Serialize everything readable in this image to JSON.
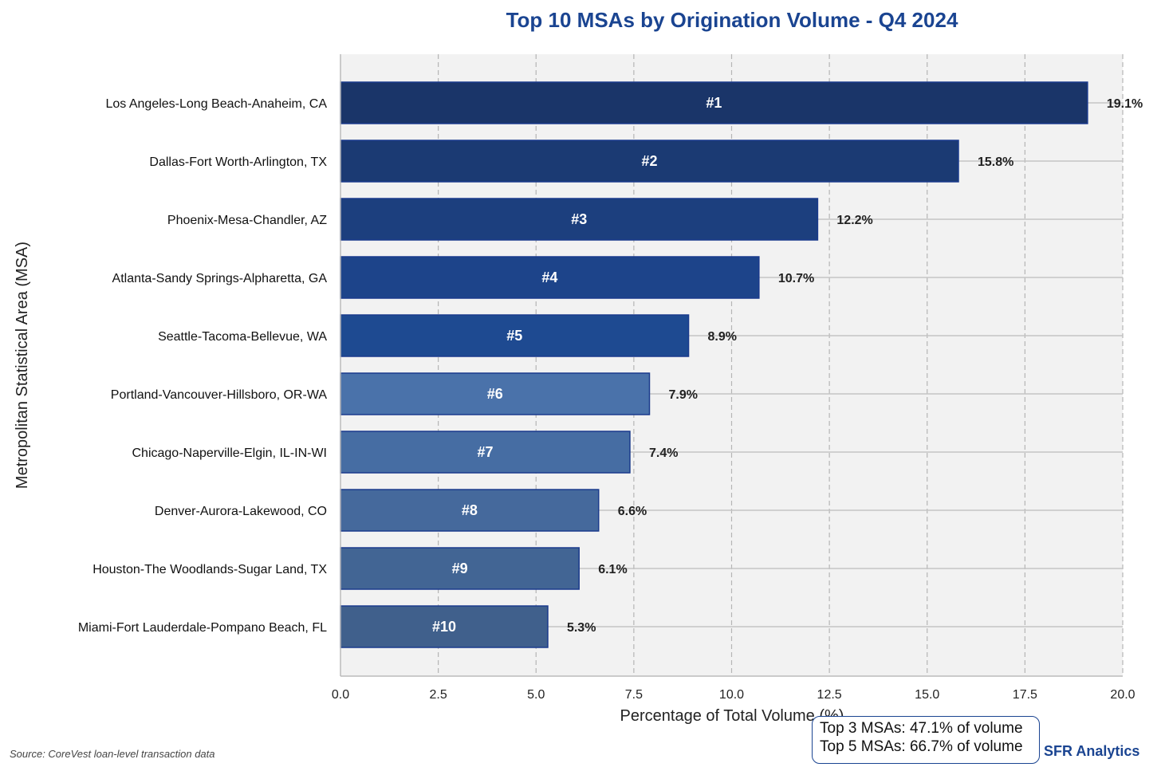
{
  "chart_data": {
    "type": "bar",
    "orientation": "horizontal",
    "title": "Top 10 MSAs by Origination Volume - Q4 2024",
    "xlabel": "Percentage of Total Volume (%)",
    "ylabel": "Metropolitan Statistical Area (MSA)",
    "xlim": [
      0,
      20
    ],
    "xticks": [
      "0.0",
      "2.5",
      "5.0",
      "7.5",
      "10.0",
      "12.5",
      "15.0",
      "17.5",
      "20.0"
    ],
    "grid": true,
    "categories": [
      "Los Angeles-Long Beach-Anaheim, CA",
      "Dallas-Fort Worth-Arlington, TX",
      "Phoenix-Mesa-Chandler, AZ",
      "Atlanta-Sandy Springs-Alpharetta, GA",
      "Seattle-Tacoma-Bellevue, WA",
      "Portland-Vancouver-Hillsboro, OR-WA",
      "Chicago-Naperville-Elgin, IL-IN-WI",
      "Denver-Aurora-Lakewood, CO",
      "Houston-The Woodlands-Sugar Land, TX",
      "Miami-Fort Lauderdale-Pompano Beach, FL"
    ],
    "values": [
      19.1,
      15.8,
      12.2,
      10.7,
      8.9,
      7.9,
      7.4,
      6.6,
      6.1,
      5.3
    ],
    "rank_labels": [
      "#1",
      "#2",
      "#3",
      "#4",
      "#5",
      "#6",
      "#7",
      "#8",
      "#9",
      "#10"
    ],
    "value_labels": [
      "19.1%",
      "15.8%",
      "12.2%",
      "10.7%",
      "8.9%",
      "7.9%",
      "7.4%",
      "6.6%",
      "6.1%",
      "5.3%"
    ],
    "colors": [
      "#1a3569",
      "#1b3a73",
      "#1c3f7e",
      "#1d448a",
      "#1e4a91",
      "#4a72aa",
      "#466da3",
      "#45699c",
      "#426594",
      "#40608c"
    ],
    "edge_color": "#1a3a8c"
  },
  "annotation": {
    "line1": "Top 3 MSAs: 47.1% of volume",
    "line2": "Top 5 MSAs: 66.7% of volume"
  },
  "brand": "SFR Analytics",
  "source": "Source: CoreVest loan-level transaction data"
}
